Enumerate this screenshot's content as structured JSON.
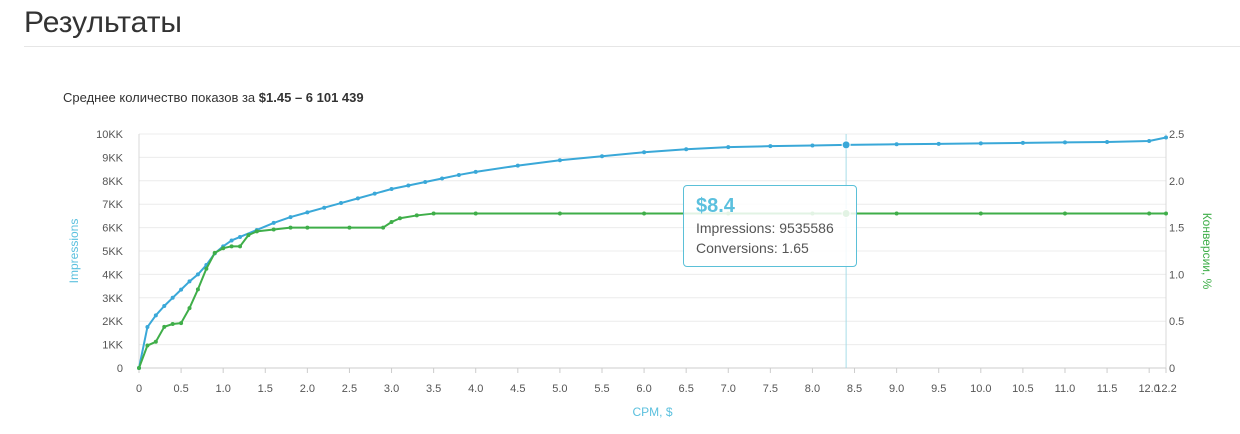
{
  "page": {
    "title": "Результаты",
    "subtitle_prefix": "Среднее количество показов за",
    "subtitle_value": "$1.45 – 6 101 439"
  },
  "tooltip": {
    "title": "$8.4",
    "impressions": "Impressions: 9535586",
    "conversions": "Conversions: 1.65"
  },
  "chart_data": {
    "type": "line",
    "xlabel": "CPM, $",
    "ylabel_left": "Impressions",
    "ylabel_right": "Конверсии, %",
    "xlim": [
      0,
      12.2
    ],
    "ylim_left": [
      0,
      10000000
    ],
    "ylim_right": [
      0,
      2.5
    ],
    "x_ticks": [
      "0",
      "0.5",
      "1.0",
      "1.5",
      "2.0",
      "2.5",
      "3.0",
      "3.5",
      "4.0",
      "4.5",
      "5.0",
      "5.5",
      "6.0",
      "6.5",
      "7.0",
      "7.5",
      "8.0",
      "8.5",
      "9.0",
      "9.5",
      "10.0",
      "10.5",
      "11.0",
      "11.5",
      "12.0",
      "12.2"
    ],
    "y_left_ticks": [
      "0",
      "1KK",
      "2KK",
      "3KK",
      "4KK",
      "5KK",
      "6KK",
      "7KK",
      "8KK",
      "9KK",
      "10KK"
    ],
    "y_right_ticks": [
      "0",
      "0.5",
      "1.0",
      "1.5",
      "2.0",
      "2.5"
    ],
    "grid": true,
    "hover_x": 8.4,
    "series": [
      {
        "name": "Impressions",
        "axis": "left",
        "color": "#3aa8d8",
        "points": [
          [
            0,
            0
          ],
          [
            0.1,
            1750000
          ],
          [
            0.2,
            2250000
          ],
          [
            0.3,
            2650000
          ],
          [
            0.4,
            3000000
          ],
          [
            0.5,
            3350000
          ],
          [
            0.6,
            3700000
          ],
          [
            0.7,
            4000000
          ],
          [
            0.8,
            4400000
          ],
          [
            0.9,
            4900000
          ],
          [
            1.0,
            5200000
          ],
          [
            1.1,
            5450000
          ],
          [
            1.2,
            5600000
          ],
          [
            1.4,
            5900000
          ],
          [
            1.6,
            6200000
          ],
          [
            1.8,
            6450000
          ],
          [
            2.0,
            6650000
          ],
          [
            2.2,
            6850000
          ],
          [
            2.4,
            7050000
          ],
          [
            2.6,
            7250000
          ],
          [
            2.8,
            7450000
          ],
          [
            3.0,
            7650000
          ],
          [
            3.2,
            7800000
          ],
          [
            3.4,
            7950000
          ],
          [
            3.6,
            8100000
          ],
          [
            3.8,
            8250000
          ],
          [
            4.0,
            8380000
          ],
          [
            4.5,
            8650000
          ],
          [
            5.0,
            8880000
          ],
          [
            5.5,
            9050000
          ],
          [
            6.0,
            9220000
          ],
          [
            6.5,
            9350000
          ],
          [
            7.0,
            9440000
          ],
          [
            7.5,
            9480000
          ],
          [
            8.0,
            9510000
          ],
          [
            8.4,
            9535586
          ],
          [
            9.0,
            9560000
          ],
          [
            9.5,
            9580000
          ],
          [
            10.0,
            9600000
          ],
          [
            10.5,
            9620000
          ],
          [
            11.0,
            9640000
          ],
          [
            11.5,
            9660000
          ],
          [
            12.0,
            9700000
          ],
          [
            12.2,
            9850000
          ]
        ]
      },
      {
        "name": "Conversions",
        "axis": "right",
        "color": "#3fae49",
        "points": [
          [
            0,
            0
          ],
          [
            0.1,
            0.24
          ],
          [
            0.2,
            0.28
          ],
          [
            0.3,
            0.44
          ],
          [
            0.4,
            0.47
          ],
          [
            0.5,
            0.48
          ],
          [
            0.6,
            0.64
          ],
          [
            0.7,
            0.84
          ],
          [
            0.8,
            1.06
          ],
          [
            0.9,
            1.23
          ],
          [
            1.0,
            1.28
          ],
          [
            1.1,
            1.3
          ],
          [
            1.2,
            1.3
          ],
          [
            1.3,
            1.42
          ],
          [
            1.4,
            1.46
          ],
          [
            1.6,
            1.48
          ],
          [
            1.8,
            1.5
          ],
          [
            2.0,
            1.5
          ],
          [
            2.5,
            1.5
          ],
          [
            2.9,
            1.5
          ],
          [
            3.0,
            1.56
          ],
          [
            3.1,
            1.6
          ],
          [
            3.3,
            1.63
          ],
          [
            3.5,
            1.65
          ],
          [
            4.0,
            1.65
          ],
          [
            5.0,
            1.65
          ],
          [
            6.0,
            1.65
          ],
          [
            7.0,
            1.65
          ],
          [
            8.0,
            1.65
          ],
          [
            8.4,
            1.65
          ],
          [
            9.0,
            1.65
          ],
          [
            10.0,
            1.65
          ],
          [
            11.0,
            1.65
          ],
          [
            12.0,
            1.65
          ],
          [
            12.2,
            1.65
          ]
        ]
      }
    ]
  }
}
